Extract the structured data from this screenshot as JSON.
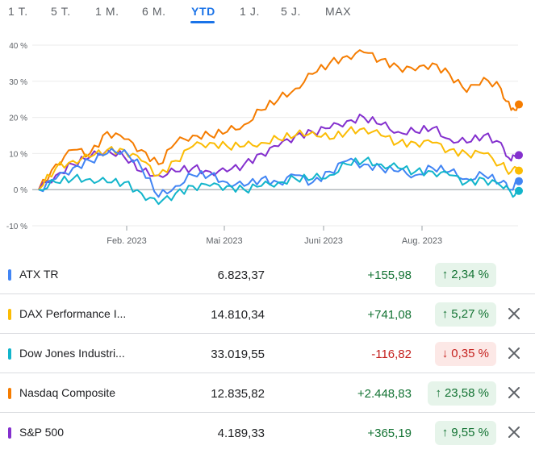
{
  "tabs": [
    {
      "label": "1 T.",
      "active": false
    },
    {
      "label": "5 T.",
      "active": false
    },
    {
      "label": "1 M.",
      "active": false
    },
    {
      "label": "6 M.",
      "active": false
    },
    {
      "label": "YTD",
      "active": true
    },
    {
      "label": "1 J.",
      "active": false
    },
    {
      "label": "5 J.",
      "active": false
    },
    {
      "label": "MAX",
      "active": false
    }
  ],
  "chart_data": {
    "type": "line",
    "y_ticks": [
      "40 %",
      "30 %",
      "20 %",
      "10 %",
      "0 %",
      "-10 %"
    ],
    "ylim": [
      -10,
      40
    ],
    "grid": true,
    "x_ticks": [
      "Feb. 2023",
      "Mai 2023",
      "Juni 2023",
      "Aug. 2023"
    ],
    "series": [
      {
        "name": "Nasdaq Composite",
        "color": "#f57c00",
        "points": [
          [
            0,
            0
          ],
          [
            5,
            7
          ],
          [
            10,
            11
          ],
          [
            15,
            10
          ],
          [
            20,
            16
          ],
          [
            25,
            14
          ],
          [
            30,
            11
          ],
          [
            35,
            7
          ],
          [
            40,
            13
          ],
          [
            45,
            15
          ],
          [
            50,
            15
          ],
          [
            55,
            16
          ],
          [
            60,
            18
          ],
          [
            65,
            22
          ],
          [
            70,
            25
          ],
          [
            75,
            28
          ],
          [
            80,
            32
          ],
          [
            85,
            35
          ],
          [
            90,
            37
          ],
          [
            95,
            38
          ],
          [
            100,
            36
          ],
          [
            105,
            34
          ],
          [
            110,
            33
          ],
          [
            115,
            35
          ],
          [
            120,
            32
          ],
          [
            125,
            27
          ],
          [
            130,
            31
          ],
          [
            135,
            28
          ],
          [
            138,
            22
          ],
          [
            140,
            23.58
          ]
        ]
      },
      {
        "name": "S&P 500",
        "color": "#8430ce",
        "points": [
          [
            0,
            0
          ],
          [
            5,
            4
          ],
          [
            10,
            7
          ],
          [
            15,
            9
          ],
          [
            20,
            11
          ],
          [
            25,
            9
          ],
          [
            30,
            5
          ],
          [
            35,
            4
          ],
          [
            40,
            5
          ],
          [
            45,
            6
          ],
          [
            50,
            5
          ],
          [
            55,
            5
          ],
          [
            60,
            7
          ],
          [
            65,
            10
          ],
          [
            70,
            12
          ],
          [
            75,
            15
          ],
          [
            80,
            16
          ],
          [
            85,
            17
          ],
          [
            90,
            19
          ],
          [
            95,
            20
          ],
          [
            100,
            18
          ],
          [
            105,
            16
          ],
          [
            110,
            16
          ],
          [
            115,
            17
          ],
          [
            120,
            14
          ],
          [
            125,
            13
          ],
          [
            130,
            15
          ],
          [
            135,
            13
          ],
          [
            138,
            8
          ],
          [
            140,
            9.55
          ]
        ]
      },
      {
        "name": "DAX Performance Index",
        "color": "#fbbc04",
        "points": [
          [
            0,
            0
          ],
          [
            5,
            6
          ],
          [
            10,
            8
          ],
          [
            15,
            9
          ],
          [
            20,
            11
          ],
          [
            25,
            11
          ],
          [
            30,
            8
          ],
          [
            35,
            4
          ],
          [
            40,
            8
          ],
          [
            45,
            12
          ],
          [
            50,
            13
          ],
          [
            55,
            12
          ],
          [
            60,
            12
          ],
          [
            65,
            13
          ],
          [
            70,
            14
          ],
          [
            75,
            15
          ],
          [
            80,
            16
          ],
          [
            85,
            14
          ],
          [
            90,
            16
          ],
          [
            95,
            17
          ],
          [
            100,
            15
          ],
          [
            105,
            13
          ],
          [
            110,
            13
          ],
          [
            115,
            13
          ],
          [
            120,
            11
          ],
          [
            125,
            10
          ],
          [
            130,
            10
          ],
          [
            135,
            7
          ],
          [
            138,
            5
          ],
          [
            140,
            5.27
          ]
        ]
      },
      {
        "name": "ATX TR",
        "color": "#4285f4",
        "points": [
          [
            0,
            0
          ],
          [
            5,
            3
          ],
          [
            10,
            6
          ],
          [
            15,
            8
          ],
          [
            20,
            10
          ],
          [
            25,
            11
          ],
          [
            30,
            6
          ],
          [
            35,
            -2
          ],
          [
            40,
            1
          ],
          [
            45,
            4
          ],
          [
            50,
            4
          ],
          [
            55,
            2
          ],
          [
            60,
            1
          ],
          [
            65,
            3
          ],
          [
            70,
            2
          ],
          [
            75,
            4
          ],
          [
            80,
            2
          ],
          [
            85,
            5
          ],
          [
            90,
            8
          ],
          [
            95,
            7
          ],
          [
            100,
            6
          ],
          [
            105,
            5
          ],
          [
            110,
            4
          ],
          [
            115,
            6
          ],
          [
            120,
            5
          ],
          [
            125,
            3
          ],
          [
            130,
            4
          ],
          [
            135,
            2
          ],
          [
            138,
            0
          ],
          [
            140,
            2.34
          ]
        ]
      },
      {
        "name": "Dow Jones Industrial Average",
        "color": "#12b5cb",
        "points": [
          [
            0,
            0
          ],
          [
            5,
            2
          ],
          [
            10,
            3
          ],
          [
            15,
            3
          ],
          [
            20,
            2
          ],
          [
            25,
            2
          ],
          [
            30,
            -1
          ],
          [
            35,
            -4
          ],
          [
            40,
            -1
          ],
          [
            45,
            1
          ],
          [
            50,
            1
          ],
          [
            55,
            1
          ],
          [
            60,
            0
          ],
          [
            65,
            1
          ],
          [
            70,
            2
          ],
          [
            75,
            3
          ],
          [
            80,
            3
          ],
          [
            85,
            4
          ],
          [
            90,
            7
          ],
          [
            95,
            8
          ],
          [
            100,
            7
          ],
          [
            105,
            6
          ],
          [
            110,
            5
          ],
          [
            115,
            5
          ],
          [
            120,
            4
          ],
          [
            125,
            2
          ],
          [
            130,
            3
          ],
          [
            135,
            1
          ],
          [
            138,
            -1
          ],
          [
            140,
            -0.35
          ]
        ]
      }
    ]
  },
  "rows": [
    {
      "name": "ATX TR",
      "price": "6.823,37",
      "change": "+155,98",
      "pct": "2,34 %",
      "arrow": "↑",
      "dir": "up",
      "color": "#4285f4",
      "closable": false
    },
    {
      "name": "DAX Performance I...",
      "price": "14.810,34",
      "change": "+741,08",
      "pct": "5,27 %",
      "arrow": "↑",
      "dir": "up",
      "color": "#fbbc04",
      "closable": true
    },
    {
      "name": "Dow Jones Industri...",
      "price": "33.019,55",
      "change": "-116,82",
      "pct": "0,35 %",
      "arrow": "↓",
      "dir": "down",
      "color": "#12b5cb",
      "closable": true
    },
    {
      "name": "Nasdaq Composite",
      "price": "12.835,82",
      "change": "+2.448,83",
      "pct": "23,58 %",
      "arrow": "↑",
      "dir": "up",
      "color": "#f57c00",
      "closable": true
    },
    {
      "name": "S&P 500",
      "price": "4.189,33",
      "change": "+365,19",
      "pct": "9,55 %",
      "arrow": "↑",
      "dir": "up",
      "color": "#8430ce",
      "closable": true
    }
  ]
}
